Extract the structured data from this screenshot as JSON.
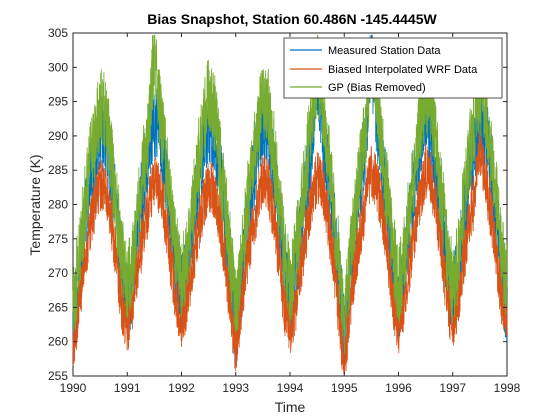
{
  "chart_data": {
    "type": "line",
    "title": "Bias Snapshot, Station 60.486N -145.4445W",
    "xlabel": "Time",
    "ylabel": "Temperature (K)",
    "xlim": [
      1990,
      1998
    ],
    "ylim": [
      255,
      305
    ],
    "xticks": [
      1990,
      1991,
      1992,
      1993,
      1994,
      1995,
      1996,
      1997,
      1998
    ],
    "yticks": [
      255,
      260,
      265,
      270,
      275,
      280,
      285,
      290,
      295,
      300,
      305
    ],
    "grid": false,
    "legend_position": "top-right",
    "annual_cycle": {
      "x": [
        1990.0,
        1990.1,
        1990.2,
        1990.3,
        1990.4,
        1990.5,
        1990.6,
        1990.7,
        1990.8,
        1990.9
      ],
      "description_units": "fraction of year"
    },
    "series": [
      {
        "name": "Measured Station Data",
        "color": "#0072BD",
        "x": [
          1990.0,
          1990.1,
          1990.2,
          1990.3,
          1990.4,
          1990.5,
          1990.6,
          1990.7,
          1990.8,
          1990.9,
          1991.0,
          1991.1,
          1991.2,
          1991.3,
          1991.4,
          1991.5,
          1991.6,
          1991.7,
          1991.8,
          1991.9,
          1992.0,
          1992.1,
          1992.2,
          1992.3,
          1992.4,
          1992.5,
          1992.6,
          1992.7,
          1992.8,
          1992.9,
          1993.0,
          1993.1,
          1993.2,
          1993.3,
          1993.4,
          1993.5,
          1993.6,
          1993.7,
          1993.8,
          1993.9,
          1994.0,
          1994.1,
          1994.2,
          1994.3,
          1994.4,
          1994.5,
          1994.6,
          1994.7,
          1994.8,
          1994.9,
          1995.0,
          1995.1,
          1995.2,
          1995.3,
          1995.4,
          1995.5,
          1995.6,
          1995.7,
          1995.8,
          1995.9,
          1996.0,
          1996.1,
          1996.2,
          1996.3,
          1996.4,
          1996.5,
          1996.6,
          1996.7,
          1996.8,
          1996.9,
          1997.0,
          1997.1,
          1997.2,
          1997.3,
          1997.4,
          1997.5,
          1997.6,
          1997.7,
          1997.8,
          1997.9,
          1998.0
        ],
        "y": [
          262,
          268,
          276,
          282,
          287,
          291,
          290,
          285,
          278,
          270,
          266,
          269,
          277,
          283,
          289,
          292,
          291,
          285,
          278,
          271,
          267,
          270,
          277,
          283,
          288,
          292,
          290,
          285,
          278,
          270,
          261,
          268,
          276,
          283,
          288,
          292,
          291,
          285,
          277,
          270,
          266,
          269,
          276,
          283,
          289,
          300,
          291,
          285,
          278,
          269,
          261,
          268,
          277,
          283,
          290,
          302,
          292,
          286,
          279,
          270,
          265,
          269,
          277,
          283,
          289,
          293,
          291,
          285,
          278,
          271,
          266,
          270,
          277,
          284,
          289,
          293,
          291,
          286,
          278,
          270,
          264
        ]
      },
      {
        "name": "Biased Interpolated WRF Data",
        "color": "#D95319",
        "x": [
          1990.0,
          1990.1,
          1990.2,
          1990.3,
          1990.4,
          1990.5,
          1990.6,
          1990.7,
          1990.8,
          1990.9,
          1991.0,
          1991.1,
          1991.2,
          1991.3,
          1991.4,
          1991.5,
          1991.6,
          1991.7,
          1991.8,
          1991.9,
          1992.0,
          1992.1,
          1992.2,
          1992.3,
          1992.4,
          1992.5,
          1992.6,
          1992.7,
          1992.8,
          1992.9,
          1993.0,
          1993.1,
          1993.2,
          1993.3,
          1993.4,
          1993.5,
          1993.6,
          1993.7,
          1993.8,
          1993.9,
          1994.0,
          1994.1,
          1994.2,
          1994.3,
          1994.4,
          1994.5,
          1994.6,
          1994.7,
          1994.8,
          1994.9,
          1995.0,
          1995.1,
          1995.2,
          1995.3,
          1995.4,
          1995.5,
          1995.6,
          1995.7,
          1995.8,
          1995.9,
          1996.0,
          1996.1,
          1996.2,
          1996.3,
          1996.4,
          1996.5,
          1996.6,
          1996.7,
          1996.8,
          1996.9,
          1997.0,
          1997.1,
          1997.2,
          1997.3,
          1997.4,
          1997.5,
          1997.6,
          1997.7,
          1997.8,
          1997.9,
          1998.0
        ],
        "y": [
          258,
          265,
          271,
          276,
          280,
          283,
          282,
          278,
          272,
          265,
          262,
          266,
          271,
          276,
          280,
          283,
          282,
          278,
          272,
          266,
          263,
          266,
          271,
          276,
          280,
          283,
          282,
          278,
          272,
          265,
          259,
          265,
          271,
          276,
          280,
          284,
          283,
          278,
          272,
          265,
          262,
          265,
          271,
          276,
          281,
          284,
          283,
          278,
          272,
          264,
          256,
          265,
          271,
          276,
          281,
          285,
          283,
          279,
          273,
          266,
          262,
          266,
          271,
          276,
          281,
          285,
          284,
          279,
          273,
          266,
          262,
          266,
          272,
          277,
          281,
          288,
          284,
          279,
          273,
          266,
          262
        ]
      },
      {
        "name": "GP (Bias Removed)",
        "color": "#77AC30",
        "x": [
          1990.0,
          1990.1,
          1990.2,
          1990.3,
          1990.4,
          1990.5,
          1990.6,
          1990.7,
          1990.8,
          1990.9,
          1991.0,
          1991.1,
          1991.2,
          1991.3,
          1991.4,
          1991.5,
          1991.6,
          1991.7,
          1991.8,
          1991.9,
          1992.0,
          1992.1,
          1992.2,
          1992.3,
          1992.4,
          1992.5,
          1992.6,
          1992.7,
          1992.8,
          1992.9,
          1993.0,
          1993.1,
          1993.2,
          1993.3,
          1993.4,
          1993.5,
          1993.6,
          1993.7,
          1993.8,
          1993.9,
          1994.0,
          1994.1,
          1994.2,
          1994.3,
          1994.4,
          1994.5,
          1994.6,
          1994.7,
          1994.8,
          1994.9,
          1995.0,
          1995.1,
          1995.2,
          1995.3,
          1995.4,
          1995.5,
          1995.6,
          1995.7,
          1995.8,
          1995.9,
          1996.0,
          1996.1,
          1996.2,
          1996.3,
          1996.4,
          1996.5,
          1996.6,
          1996.7,
          1996.8,
          1996.9,
          1997.0,
          1997.1,
          1997.2,
          1997.3,
          1997.4,
          1997.5,
          1997.6,
          1997.7,
          1997.8,
          1997.9,
          1998.0
        ],
        "y": [
          265,
          271,
          279,
          285,
          290,
          294,
          293,
          287,
          280,
          273,
          268,
          272,
          279,
          286,
          291,
          303,
          294,
          287,
          280,
          273,
          269,
          272,
          279,
          286,
          291,
          296,
          294,
          287,
          280,
          273,
          264,
          271,
          279,
          286,
          291,
          295,
          294,
          288,
          280,
          273,
          268,
          272,
          279,
          286,
          292,
          300,
          295,
          288,
          280,
          272,
          264,
          271,
          279,
          286,
          292,
          301,
          295,
          288,
          281,
          273,
          268,
          272,
          279,
          286,
          292,
          296,
          295,
          288,
          281,
          273,
          268,
          272,
          280,
          287,
          292,
          296,
          295,
          288,
          281,
          273,
          268
        ]
      }
    ]
  }
}
